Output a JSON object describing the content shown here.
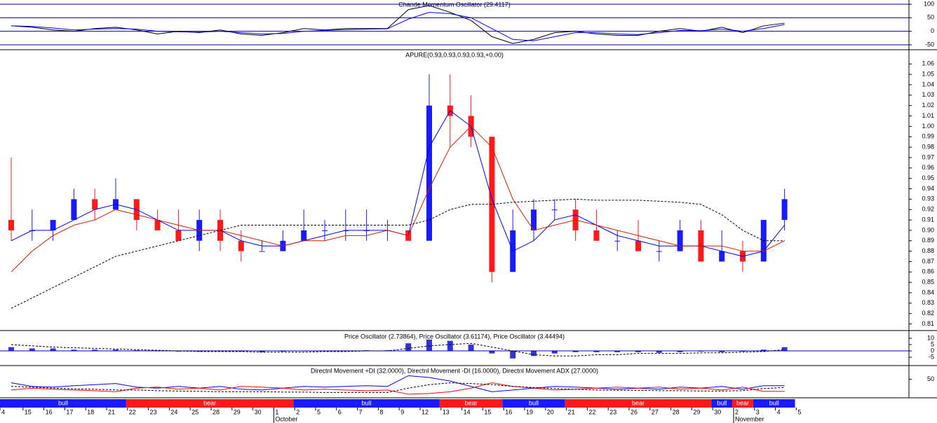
{
  "x_axis": {
    "categories": [
      "4",
      "15",
      "16",
      "17",
      "18",
      "21",
      "22",
      "23",
      "24",
      "25",
      "28",
      "29",
      "30",
      "1",
      "2",
      "5",
      "6",
      "7",
      "8",
      "9",
      "12",
      "13",
      "14",
      "15",
      "16",
      "19",
      "20",
      "21",
      "22",
      "23",
      "26",
      "27",
      "28",
      "29",
      "30",
      "2",
      "3",
      "4",
      "5"
    ],
    "trend": [
      "bull",
      "bull",
      "bull",
      "bull",
      "bull",
      "bull",
      "bear",
      "bear",
      "bear",
      "bear",
      "bear",
      "bear",
      "bear",
      "bear",
      "bull",
      "bull",
      "bull",
      "bull",
      "bull",
      "bull",
      "bull",
      "bear",
      "bear",
      "bear",
      "bull",
      "bull",
      "bull",
      "bear",
      "bear",
      "bear",
      "bear",
      "bear",
      "bear",
      "bear",
      "bull",
      "bear",
      "bull",
      "bull",
      null
    ],
    "trend_colors": {
      "bull": "#1a1aff",
      "bear": "#ff1a1a"
    },
    "months": [
      null,
      null,
      null,
      null,
      null,
      null,
      null,
      null,
      null,
      null,
      null,
      null,
      null,
      "October",
      null,
      null,
      null,
      null,
      null,
      null,
      null,
      null,
      null,
      null,
      null,
      null,
      null,
      null,
      null,
      null,
      null,
      null,
      null,
      null,
      null,
      "November",
      null,
      null,
      null
    ]
  },
  "chart_data": [
    {
      "type": "line",
      "title": "Chande Momentum Oscillator (29.4117)",
      "ylim": [
        -65.5,
        115.5
      ],
      "yticks": [
        100,
        50,
        0,
        -50
      ],
      "grid": true,
      "grid_color": "#0000aa",
      "series": [
        {
          "type": "line",
          "color": "#000000",
          "dash": false,
          "values": [
            20,
            15,
            5,
            0,
            10,
            15,
            5,
            -10,
            0,
            -5,
            5,
            -10,
            -15,
            -5,
            10,
            5,
            10,
            10,
            10,
            80,
            95,
            70,
            40,
            -20,
            -45,
            -30,
            -5,
            0,
            -10,
            -15,
            -15,
            0,
            10,
            0,
            15,
            -5,
            20,
            30,
            null
          ]
        },
        {
          "type": "line",
          "color": "#0000ff",
          "dash": false,
          "values": [
            20,
            18,
            12,
            5,
            8,
            10,
            8,
            0,
            -2,
            -3,
            0,
            -5,
            -10,
            -8,
            0,
            3,
            6,
            8,
            9,
            45,
            70,
            65,
            50,
            10,
            -30,
            -35,
            -20,
            -5,
            -5,
            -10,
            -12,
            -5,
            3,
            2,
            8,
            0,
            10,
            25,
            null
          ]
        }
      ]
    },
    {
      "type": "candlestick",
      "title": "APURE(0.93,0.93,0.93,0.93,+0.00)",
      "ylim": [
        0.805,
        1.073
      ],
      "yticks": [
        0.81,
        0.82,
        0.83,
        0.84,
        0.85,
        0.86,
        0.87,
        0.88,
        0.89,
        {
          "value": 0.9,
          "label": "0.90"
        },
        0.91,
        0.92,
        0.93,
        0.94,
        0.95,
        0.96,
        0.97,
        0.98,
        0.99,
        {
          "value": 1,
          "label": "1.00"
        },
        1.01,
        1.02,
        1.03,
        1.04,
        1.05,
        1.06
      ],
      "up_color": "#1a1aff",
      "down_color": "#ff1a1a",
      "open": [
        0.91,
        0.9,
        0.9,
        0.91,
        0.93,
        0.92,
        0.93,
        0.91,
        0.9,
        0.89,
        0.91,
        0.89,
        0.88,
        0.88,
        0.89,
        0.9,
        0.9,
        0.9,
        0.9,
        0.9,
        0.89,
        1.02,
        1.01,
        0.99,
        0.86,
        0.9,
        0.92,
        0.92,
        0.9,
        0.89,
        0.89,
        0.88,
        0.88,
        0.9,
        0.87,
        0.88,
        0.87,
        0.91,
        null
      ],
      "high": [
        0.97,
        0.92,
        0.91,
        0.94,
        0.94,
        0.95,
        0.93,
        0.92,
        0.92,
        0.92,
        0.92,
        0.9,
        0.89,
        0.9,
        0.92,
        0.91,
        0.92,
        0.92,
        0.91,
        0.9,
        1.05,
        1.05,
        1.03,
        0.99,
        0.92,
        0.93,
        0.93,
        0.93,
        0.92,
        0.9,
        0.91,
        0.89,
        0.91,
        0.91,
        0.9,
        0.89,
        0.91,
        0.94,
        null
      ],
      "low": [
        0.89,
        0.89,
        0.89,
        0.91,
        0.91,
        0.92,
        0.9,
        0.9,
        0.89,
        0.88,
        0.88,
        0.87,
        0.88,
        0.88,
        0.89,
        0.89,
        0.89,
        0.89,
        0.89,
        0.89,
        0.89,
        0.98,
        0.98,
        0.85,
        0.86,
        0.89,
        0.91,
        0.89,
        0.89,
        0.88,
        0.88,
        0.87,
        0.88,
        0.87,
        0.87,
        0.86,
        0.87,
        0.9,
        null
      ],
      "close": [
        0.9,
        0.9,
        0.91,
        0.93,
        0.92,
        0.93,
        0.91,
        0.9,
        0.89,
        0.91,
        0.89,
        0.88,
        0.88,
        0.89,
        0.9,
        0.9,
        0.9,
        0.9,
        0.9,
        0.89,
        1.02,
        1.01,
        0.99,
        0.86,
        0.9,
        0.92,
        0.92,
        0.9,
        0.89,
        0.89,
        0.88,
        0.88,
        0.9,
        0.87,
        0.88,
        0.87,
        0.91,
        0.93,
        null
      ],
      "series": [
        {
          "type": "line",
          "color": "#0000ff",
          "dash": false,
          "values": [
            0.89,
            0.9,
            0.9,
            0.91,
            0.92,
            0.925,
            0.92,
            0.91,
            0.9,
            0.9,
            0.9,
            0.89,
            0.885,
            0.885,
            0.89,
            0.895,
            0.9,
            0.9,
            0.9,
            0.895,
            0.98,
            1.015,
            1.0,
            0.93,
            0.88,
            0.89,
            0.91,
            0.915,
            0.905,
            0.895,
            0.89,
            0.885,
            0.885,
            0.885,
            0.88,
            0.875,
            0.88,
            0.905,
            null
          ]
        },
        {
          "type": "line",
          "color": "#cc2200",
          "dash": false,
          "values": [
            0.86,
            0.88,
            0.895,
            0.905,
            0.91,
            0.92,
            0.915,
            0.91,
            0.905,
            0.9,
            0.9,
            0.895,
            0.89,
            0.885,
            0.89,
            0.89,
            0.895,
            0.895,
            0.9,
            0.895,
            0.94,
            0.98,
            1.0,
            0.98,
            0.93,
            0.9,
            0.905,
            0.91,
            0.905,
            0.9,
            0.895,
            0.89,
            0.885,
            0.885,
            0.885,
            0.88,
            0.88,
            0.89,
            null
          ]
        },
        {
          "type": "line",
          "color": "#000000",
          "dash": true,
          "values": [
            0.825,
            0.835,
            0.845,
            0.855,
            0.865,
            0.875,
            0.88,
            0.885,
            0.89,
            0.895,
            0.9,
            0.905,
            0.905,
            0.905,
            0.905,
            0.905,
            0.905,
            0.905,
            0.905,
            0.905,
            0.91,
            0.92,
            0.925,
            0.925,
            0.927,
            0.928,
            0.929,
            0.93,
            0.929,
            0.929,
            0.929,
            0.928,
            0.927,
            0.925,
            0.915,
            0.9,
            0.89,
            0.89,
            null
          ]
        }
      ]
    },
    {
      "type": "bar",
      "title": "Price Oscillator (2.73864), Price Oscillator (3.61174), Price Oscillator (3.44494)",
      "ylim": [
        -10.5,
        15
      ],
      "yticks": [
        10,
        5,
        0,
        -5
      ],
      "grid": false,
      "series": [
        {
          "type": "bar",
          "color": "#0000cc",
          "dash": false,
          "values": [
            3,
            2,
            2,
            1,
            1,
            1,
            0.5,
            0,
            -0.5,
            -0.5,
            0,
            -0.5,
            -1,
            -0.5,
            0,
            0,
            0,
            0.5,
            0.5,
            6,
            9,
            8,
            5,
            -2,
            -6,
            -4,
            -2,
            -1,
            -1,
            -1,
            -1,
            -1.5,
            -1,
            -0.5,
            -1,
            -0.5,
            1,
            3,
            null
          ]
        },
        {
          "type": "line",
          "color": "#000000",
          "dash": true,
          "values": [
            5,
            4,
            3,
            2.5,
            2,
            1.5,
            1,
            0.5,
            0,
            -0.5,
            -0.5,
            -0.5,
            -1,
            -1,
            -1,
            -0.5,
            -0.5,
            0,
            0,
            2,
            4,
            5,
            6,
            3,
            0,
            -3,
            -4,
            -4,
            -3,
            -3,
            -2,
            -2,
            -2,
            -1.5,
            -1.5,
            -1,
            -0.5,
            1,
            null
          ]
        }
      ]
    },
    {
      "type": "line",
      "title": "Directnl Movement +DI (32.0000), Directnl Movement -DI (16.0000), Directnl Movement ADX (27.0000)",
      "ylim": [
        0,
        86.5
      ],
      "yticks": [
        50
      ],
      "grid": false,
      "series": [
        {
          "type": "line",
          "color": "#0000ff",
          "dash": false,
          "values": [
            40,
            30,
            28,
            32,
            35,
            38,
            28,
            25,
            30,
            25,
            30,
            22,
            20,
            25,
            30,
            28,
            30,
            32,
            30,
            60,
            55,
            45,
            30,
            15,
            20,
            25,
            30,
            28,
            25,
            22,
            25,
            22,
            28,
            25,
            30,
            22,
            32,
            32,
            null
          ]
        },
        {
          "type": "line",
          "color": "#ff0000",
          "dash": false,
          "values": [
            20,
            25,
            22,
            20,
            18,
            15,
            25,
            28,
            22,
            25,
            20,
            30,
            28,
            25,
            20,
            22,
            20,
            18,
            20,
            8,
            10,
            15,
            25,
            40,
            30,
            25,
            20,
            22,
            25,
            28,
            25,
            28,
            22,
            25,
            20,
            28,
            16,
            16,
            null
          ]
        },
        {
          "type": "line",
          "color": "#000000",
          "dash": true,
          "values": [
            30,
            28,
            25,
            23,
            22,
            20,
            20,
            18,
            17,
            16,
            15,
            15,
            15,
            14,
            14,
            13,
            13,
            13,
            13,
            25,
            35,
            40,
            38,
            35,
            30,
            27,
            24,
            22,
            20,
            19,
            19,
            18,
            18,
            17,
            17,
            18,
            24,
            27,
            null
          ]
        }
      ]
    }
  ]
}
